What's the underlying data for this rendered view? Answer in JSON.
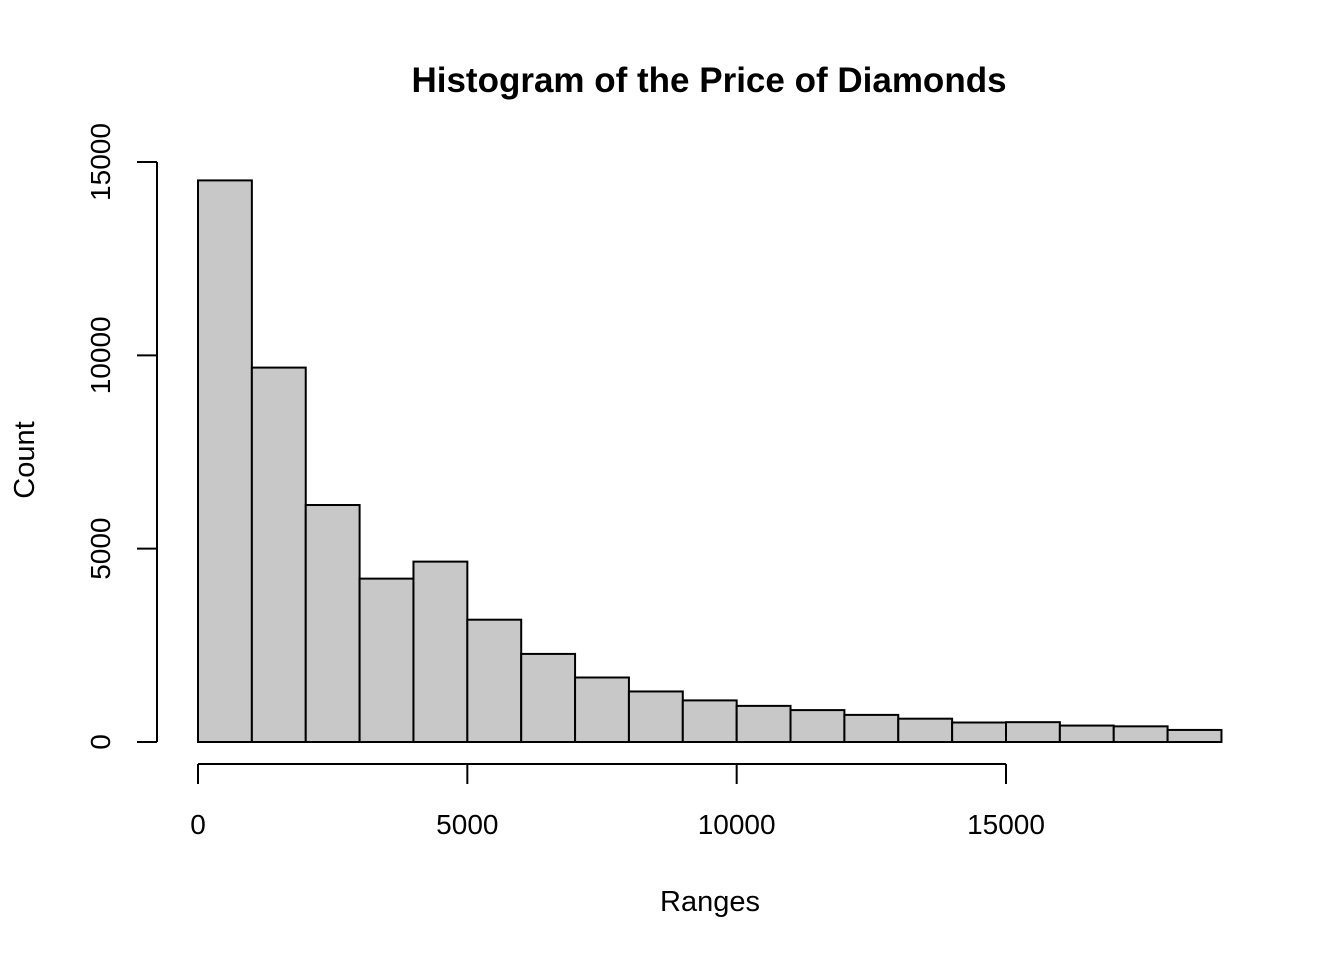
{
  "chart_data": {
    "type": "bar",
    "title": "Histogram of the Price of Diamonds",
    "xlabel": "Ranges",
    "ylabel": "Count",
    "bin_width": 1000,
    "bins": [
      {
        "start": 0,
        "end": 1000,
        "count": 14524
      },
      {
        "start": 1000,
        "end": 2000,
        "count": 9683
      },
      {
        "start": 2000,
        "end": 3000,
        "count": 6129
      },
      {
        "start": 3000,
        "end": 4000,
        "count": 4225
      },
      {
        "start": 4000,
        "end": 5000,
        "count": 4665
      },
      {
        "start": 5000,
        "end": 6000,
        "count": 3163
      },
      {
        "start": 6000,
        "end": 7000,
        "count": 2278
      },
      {
        "start": 7000,
        "end": 8000,
        "count": 1668
      },
      {
        "start": 8000,
        "end": 9000,
        "count": 1307
      },
      {
        "start": 9000,
        "end": 10000,
        "count": 1076
      },
      {
        "start": 10000,
        "end": 11000,
        "count": 934
      },
      {
        "start": 11000,
        "end": 12000,
        "count": 825
      },
      {
        "start": 12000,
        "end": 13000,
        "count": 701
      },
      {
        "start": 13000,
        "end": 14000,
        "count": 603
      },
      {
        "start": 14000,
        "end": 15000,
        "count": 504
      },
      {
        "start": 15000,
        "end": 16000,
        "count": 513
      },
      {
        "start": 16000,
        "end": 17000,
        "count": 425
      },
      {
        "start": 17000,
        "end": 18000,
        "count": 405
      },
      {
        "start": 18000,
        "end": 19000,
        "count": 312
      }
    ],
    "xlim": [
      0,
      19000
    ],
    "ylim": [
      0,
      15000
    ],
    "x_ticks": [
      0,
      5000,
      10000,
      15000
    ],
    "y_ticks": [
      0,
      5000,
      10000,
      15000
    ],
    "x_tick_labels": [
      "0",
      "5000",
      "10000",
      "15000"
    ],
    "y_tick_labels": [
      "0",
      "5000",
      "10000",
      "15000"
    ],
    "grid": false,
    "colors": {
      "bar_fill": "#c8c8c8",
      "bar_stroke": "#000000"
    }
  }
}
